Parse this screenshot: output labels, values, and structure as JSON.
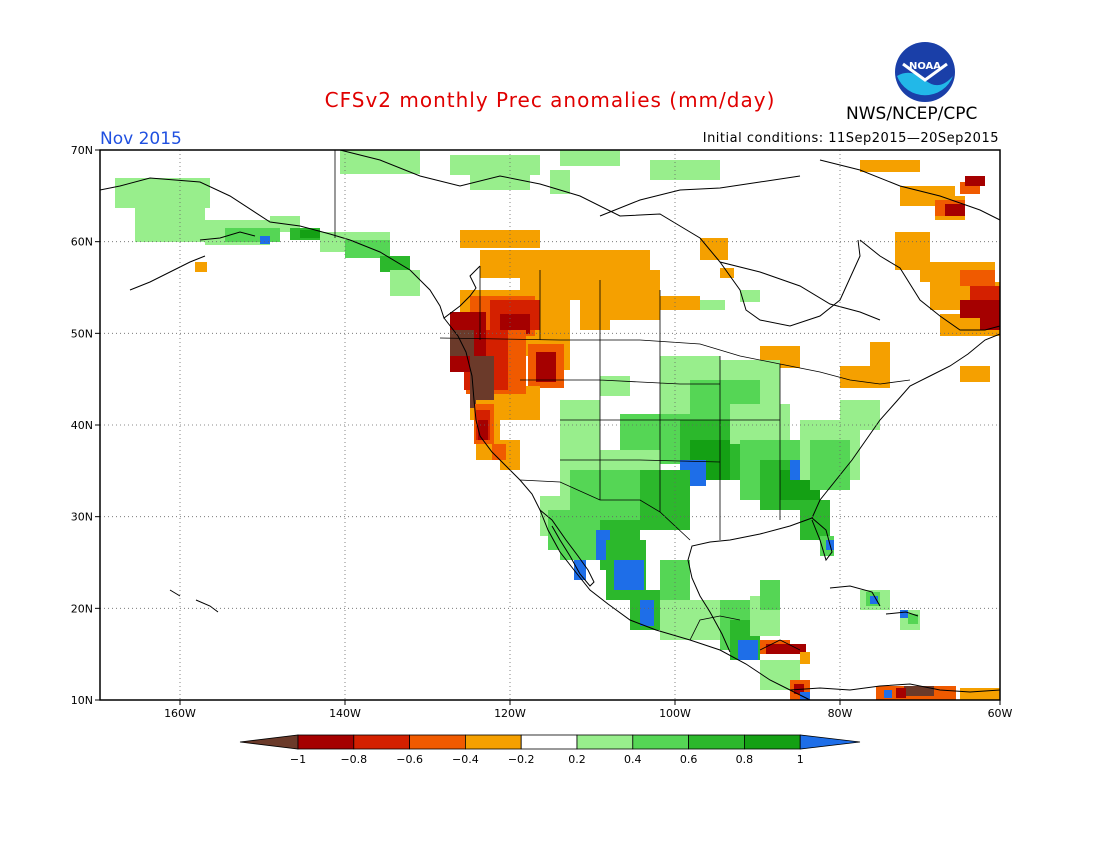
{
  "title": "CFSv2 monthly Prec anomalies (mm/day)",
  "month": "Nov 2015",
  "initial_conditions": "Initial conditions: 11Sep2015—20Sep2015",
  "agency": "NWS/NCEP/CPC",
  "logo_text": "NOAA",
  "colors": {
    "title": "#e00000",
    "month": "#2050e0",
    "neg_100": "#6b3a2a",
    "neg_08": "#a50000",
    "neg_06": "#d42000",
    "neg_04": "#f05a00",
    "neg_02": "#f5a000",
    "neutral": "#ffffff",
    "pos_02": "#98ee8c",
    "pos_04": "#55d655",
    "pos_06": "#2cb82c",
    "pos_08": "#14a014",
    "pos_100": "#1e6ee8"
  },
  "map": {
    "lon_labels": [
      "160W",
      "140W",
      "120W",
      "100W",
      "80W",
      "60W"
    ],
    "lat_labels": [
      "70N",
      "60N",
      "50N",
      "40N",
      "30N",
      "20N",
      "10N"
    ]
  },
  "legend": {
    "labels": [
      "−1",
      "−0.8",
      "−0.6",
      "−0.4",
      "−0.2",
      "0.2",
      "0.4",
      "0.6",
      "0.8",
      "1"
    ]
  }
}
